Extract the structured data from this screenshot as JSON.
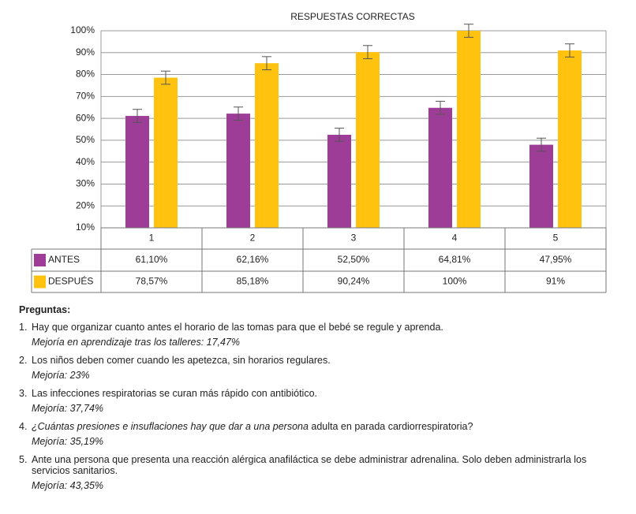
{
  "chart_data": {
    "type": "bar",
    "title": "RESPUESTAS CORRECTAS",
    "categories": [
      "1",
      "2",
      "3",
      "4",
      "5"
    ],
    "series": [
      {
        "name": "ANTES",
        "color": "#9e3d97",
        "values": [
          61.1,
          62.16,
          52.5,
          64.81,
          47.95
        ],
        "value_labels": [
          "61,10%",
          "62,16%",
          "52,50%",
          "64,81%",
          "47,95%"
        ],
        "errors": [
          3,
          3,
          3,
          3,
          3
        ]
      },
      {
        "name": "DESPUÉS",
        "color": "#ffc20e",
        "values": [
          78.57,
          85.18,
          90.24,
          100,
          91
        ],
        "value_labels": [
          "78,57%",
          "85,18%",
          "90,24%",
          "100%",
          "91%"
        ],
        "errors": [
          3,
          3,
          3,
          3,
          3
        ]
      }
    ],
    "ylim": [
      10,
      100
    ],
    "yticks": [
      {
        "value": 10,
        "label": "10%"
      },
      {
        "value": 20,
        "label": "20%"
      },
      {
        "value": 30,
        "label": "30%"
      },
      {
        "value": 40,
        "label": "40%"
      },
      {
        "value": 50,
        "label": "50%"
      },
      {
        "value": 60,
        "label": "60%"
      },
      {
        "value": 70,
        "label": "70%"
      },
      {
        "value": 80,
        "label": "80%"
      },
      {
        "value": 90,
        "label": "90%"
      },
      {
        "value": 100,
        "label": "100%"
      }
    ],
    "grid": true
  },
  "questions": {
    "heading": "Preguntas:",
    "items": [
      {
        "number": "1.",
        "text": "Hay que organizar cuanto antes el horario de las tomas para que el bebé se regule y aprenda.",
        "note": "Mejoría en aprendizaje tras los talleres: 17,47%"
      },
      {
        "number": "2.",
        "text": "Los niños deben comer cuando les apetezca, sin horarios regulares.",
        "note": "Mejoría: 23%"
      },
      {
        "number": "3.",
        "text": "Las infecciones respiratorias se curan más rápido con antibiótico.",
        "note": "Mejoría: 37,74%"
      },
      {
        "number": "4.",
        "text_italic": "¿Cuántas presiones e insuflaciones hay que dar a una persona",
        "text": "adulta en parada cardiorrespiratoria?",
        "note": "Mejoría: 35,19%"
      },
      {
        "number": "5.",
        "text": "Ante una persona que presenta una reacción alérgica anafiláctica se debe administrar adrenalina. Solo deben administrarla los servicios sanitarios.",
        "note": "Mejoría: 43,35%"
      }
    ]
  }
}
